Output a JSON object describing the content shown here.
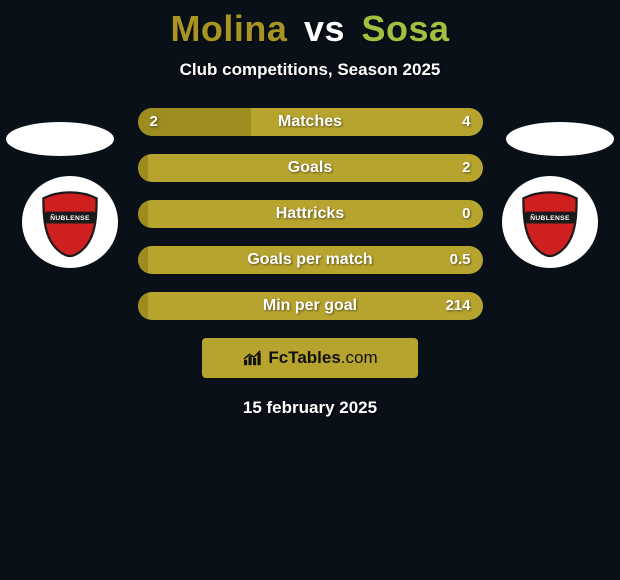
{
  "title": {
    "player1": "Molina",
    "vs": "vs",
    "player2": "Sosa",
    "player1_color": "#a79421",
    "player2_color": "#a0c040"
  },
  "subtitle": "Club competitions, Season 2025",
  "club": {
    "name": "ÑUBLENSE",
    "shield_color": "#d01f1f",
    "shield_outline": "#1a1a1a",
    "ribbon_color": "#1a1a1a"
  },
  "bars": {
    "track_color": "#b7a42f",
    "fill_color": "#9d8c20",
    "rows": [
      {
        "label": "Matches",
        "left": "2",
        "right": "4",
        "left_fill_pct": 33
      },
      {
        "label": "Goals",
        "left": "",
        "right": "2",
        "left_fill_pct": 3
      },
      {
        "label": "Hattricks",
        "left": "",
        "right": "0",
        "left_fill_pct": 3
      },
      {
        "label": "Goals per match",
        "left": "",
        "right": "0.5",
        "left_fill_pct": 3
      },
      {
        "label": "Min per goal",
        "left": "",
        "right": "214",
        "left_fill_pct": 3
      }
    ]
  },
  "watermark": {
    "background": "#b7a42f",
    "text_bold": "FcTables",
    "text_light": ".com"
  },
  "footer_date": "15 february 2025"
}
